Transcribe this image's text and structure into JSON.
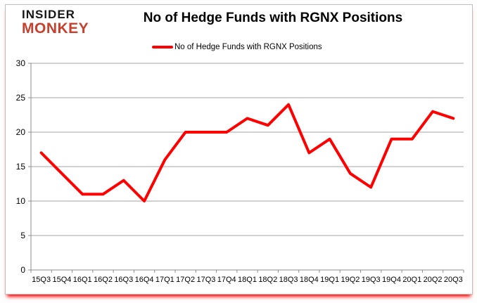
{
  "branding": {
    "logo_line1": "INSIDER",
    "logo_line2": "MONKEY"
  },
  "header": {
    "title": "No of Hedge Funds with RGNX Positions"
  },
  "legend": {
    "label": "No of Hedge Funds with RGNX Positions"
  },
  "colors": {
    "series": "#ff0000",
    "grid": "#a3a3a3",
    "axis": "#8c8c8c",
    "text": "#000000",
    "logo_top": "#151515",
    "logo_bottom": "#c7402e",
    "card_shadow": "#ff0000"
  },
  "chart_data": {
    "type": "line",
    "title": "No of Hedge Funds with RGNX Positions",
    "categories": [
      "15Q3",
      "15Q4",
      "16Q1",
      "16Q2",
      "16Q3",
      "16Q4",
      "17Q1",
      "17Q2",
      "17Q3",
      "17Q4",
      "18Q1",
      "18Q2",
      "18Q3",
      "18Q4",
      "19Q1",
      "19Q2",
      "19Q3",
      "19Q4",
      "20Q1",
      "20Q2",
      "20Q3"
    ],
    "series": [
      {
        "name": "No of Hedge Funds with RGNX Positions",
        "color": "#ff0000",
        "values": [
          17,
          14,
          11,
          11,
          13,
          10,
          16,
          20,
          20,
          20,
          22,
          21,
          24,
          17,
          19,
          14,
          12,
          19,
          19,
          23,
          22
        ]
      }
    ],
    "ylim": [
      0,
      30
    ],
    "ytick_step": 5,
    "grid": true,
    "legend_position": "top-center",
    "xlabel": "",
    "ylabel": ""
  }
}
